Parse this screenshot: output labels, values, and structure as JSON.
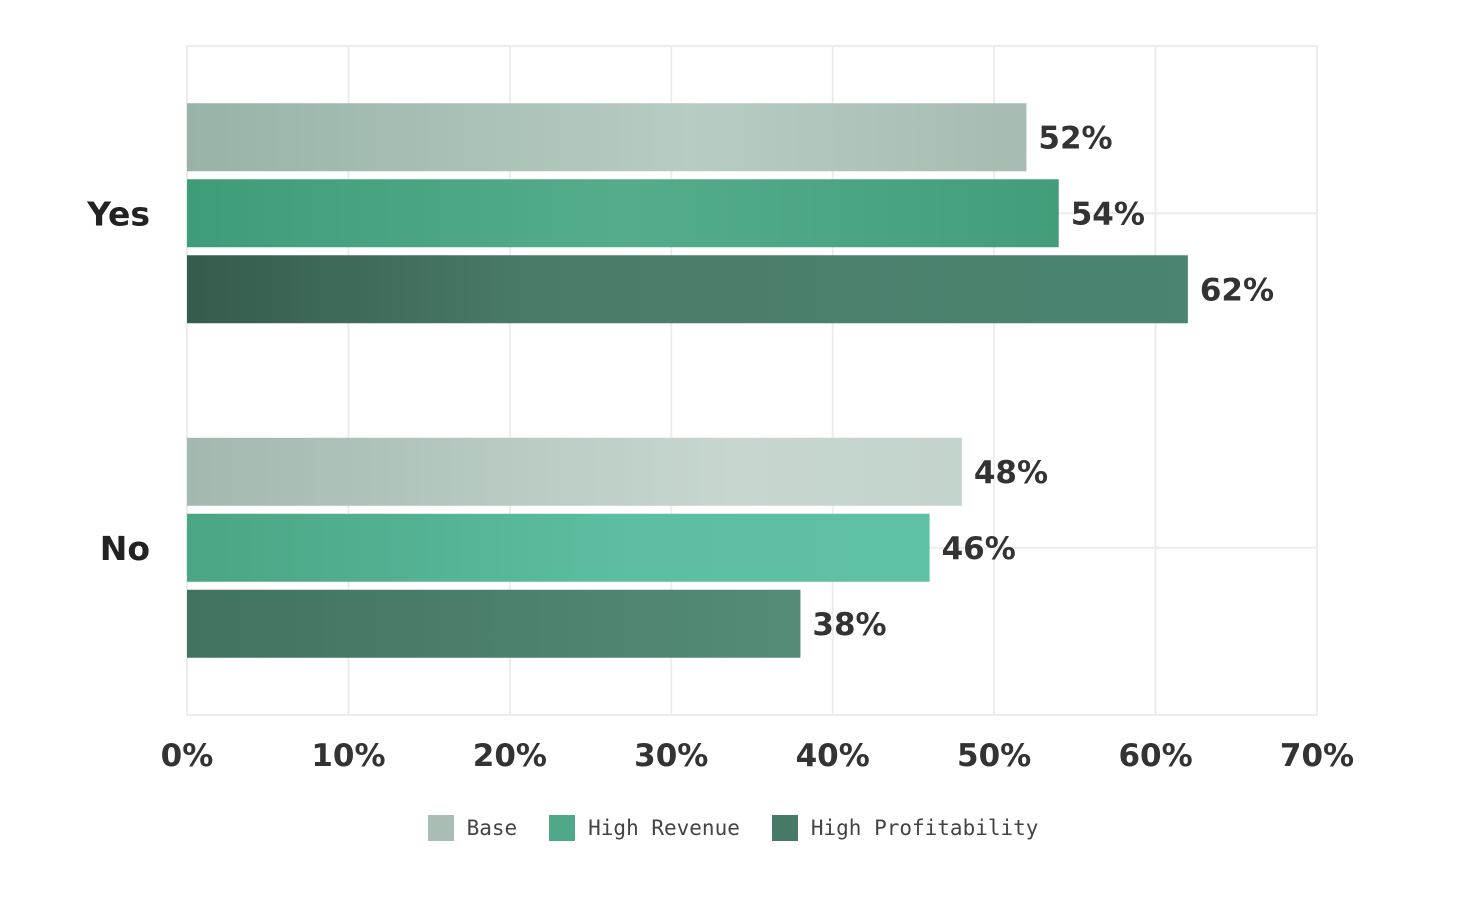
{
  "chart_data": {
    "type": "bar",
    "orientation": "horizontal",
    "categories": [
      "Yes",
      "No"
    ],
    "series": [
      {
        "name": "Base",
        "values": [
          52,
          48
        ],
        "color": "#a9bdb3"
      },
      {
        "name": "High Revenue",
        "values": [
          54,
          46
        ],
        "color": "#4fa887"
      },
      {
        "name": "High Profitability",
        "values": [
          62,
          38
        ],
        "color": "#467a66"
      }
    ],
    "value_labels": [
      [
        "52%",
        "48%"
      ],
      [
        "54%",
        "46%"
      ],
      [
        "62%",
        "38%"
      ]
    ],
    "xlim": [
      0,
      70
    ],
    "xticks": [
      0,
      10,
      20,
      30,
      40,
      50,
      60,
      70
    ],
    "xtick_labels": [
      "0%",
      "10%",
      "20%",
      "30%",
      "40%",
      "50%",
      "60%",
      "70%"
    ],
    "title": "",
    "xlabel": "",
    "ylabel": "",
    "grid": true,
    "legend_position": "bottom-center"
  },
  "legend": {
    "items": [
      {
        "label": "Base",
        "color": "#a9bdb3"
      },
      {
        "label": "High Revenue",
        "color": "#4fa887"
      },
      {
        "label": "High Profitability",
        "color": "#467a66"
      }
    ]
  }
}
